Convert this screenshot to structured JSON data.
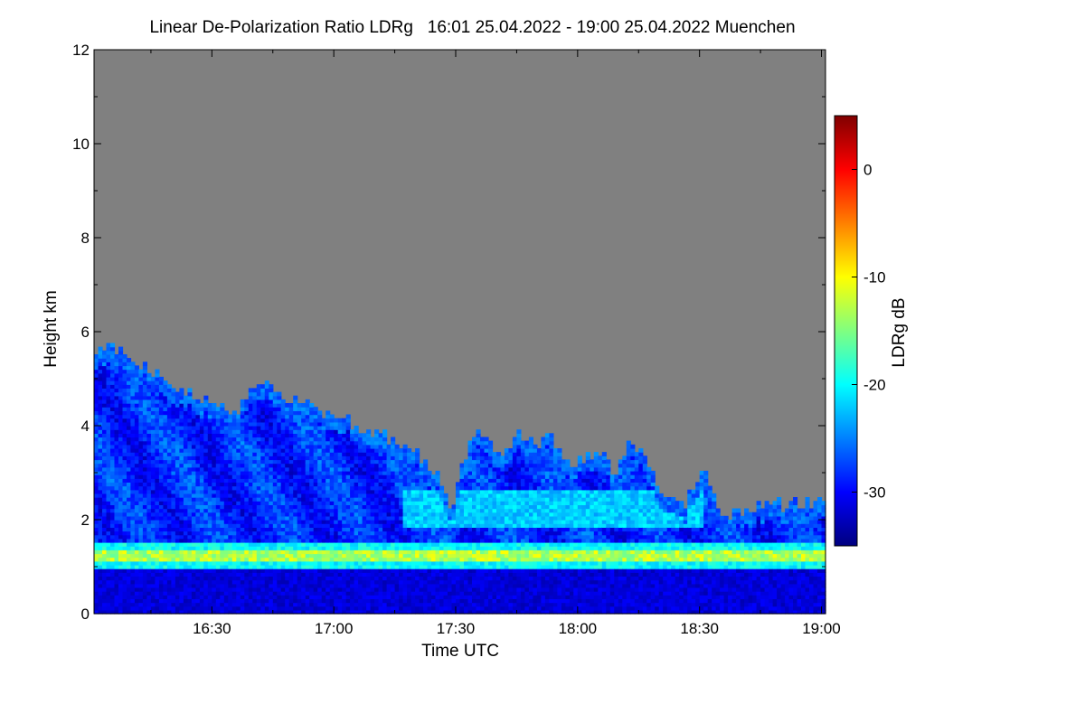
{
  "chart_data": {
    "type": "heatmap",
    "title": "Linear De-Polarization Ratio LDRg   16:01 25.04.2022 - 19:00 25.04.2022 Muenchen",
    "xlabel": "Time UTC",
    "ylabel": "Height km",
    "colorbar_label": "LDRg dB",
    "x_range": [
      "16:01",
      "19:00"
    ],
    "x_ticks": [
      "16:30",
      "17:00",
      "17:30",
      "18:00",
      "18:30",
      "19:00"
    ],
    "x_tick_minutes": [
      29,
      59,
      89,
      119,
      149,
      179
    ],
    "x_range_minutes": [
      0,
      180
    ],
    "y_range": [
      0,
      12
    ],
    "y_ticks": [
      0,
      2,
      4,
      6,
      8,
      10,
      12
    ],
    "colorbar_range": [
      -35,
      5
    ],
    "colorbar_ticks": [
      0,
      -10,
      -20,
      -30
    ],
    "colormap": [
      "#00007f",
      "#0000ff",
      "#0080ff",
      "#00ffff",
      "#80ff80",
      "#ffff00",
      "#ff8000",
      "#ff0000",
      "#800000"
    ],
    "no_data_color": "#808080",
    "cloud_top_km": [
      [
        0,
        5.6
      ],
      [
        5,
        5.6
      ],
      [
        10,
        5.4
      ],
      [
        15,
        5.1
      ],
      [
        20,
        4.8
      ],
      [
        25,
        4.6
      ],
      [
        30,
        4.5
      ],
      [
        35,
        4.2
      ],
      [
        40,
        4.9
      ],
      [
        45,
        4.7
      ],
      [
        50,
        4.5
      ],
      [
        55,
        4.3
      ],
      [
        60,
        4.2
      ],
      [
        65,
        3.9
      ],
      [
        70,
        3.8
      ],
      [
        75,
        3.6
      ],
      [
        80,
        3.3
      ],
      [
        85,
        2.8
      ],
      [
        88,
        2.2
      ],
      [
        92,
        3.6
      ],
      [
        96,
        3.8
      ],
      [
        100,
        3.2
      ],
      [
        104,
        3.9
      ],
      [
        108,
        3.5
      ],
      [
        112,
        3.8
      ],
      [
        116,
        3.1
      ],
      [
        120,
        3.2
      ],
      [
        124,
        3.5
      ],
      [
        128,
        2.8
      ],
      [
        132,
        3.6
      ],
      [
        136,
        3.3
      ],
      [
        140,
        2.5
      ],
      [
        145,
        2.2
      ],
      [
        150,
        3.0
      ],
      [
        155,
        2.0
      ],
      [
        160,
        2.2
      ],
      [
        170,
        2.3
      ],
      [
        180,
        2.3
      ]
    ],
    "layers": [
      {
        "name": "aerosol_layer",
        "height_km": 1.2,
        "ldr_db": -15
      },
      {
        "name": "boundary_layer",
        "height_km": 0.5,
        "ldr_db": -33
      },
      {
        "name": "precip_band",
        "height_km": [
          1.8,
          2.6
        ],
        "ldr_db": -22
      }
    ]
  }
}
